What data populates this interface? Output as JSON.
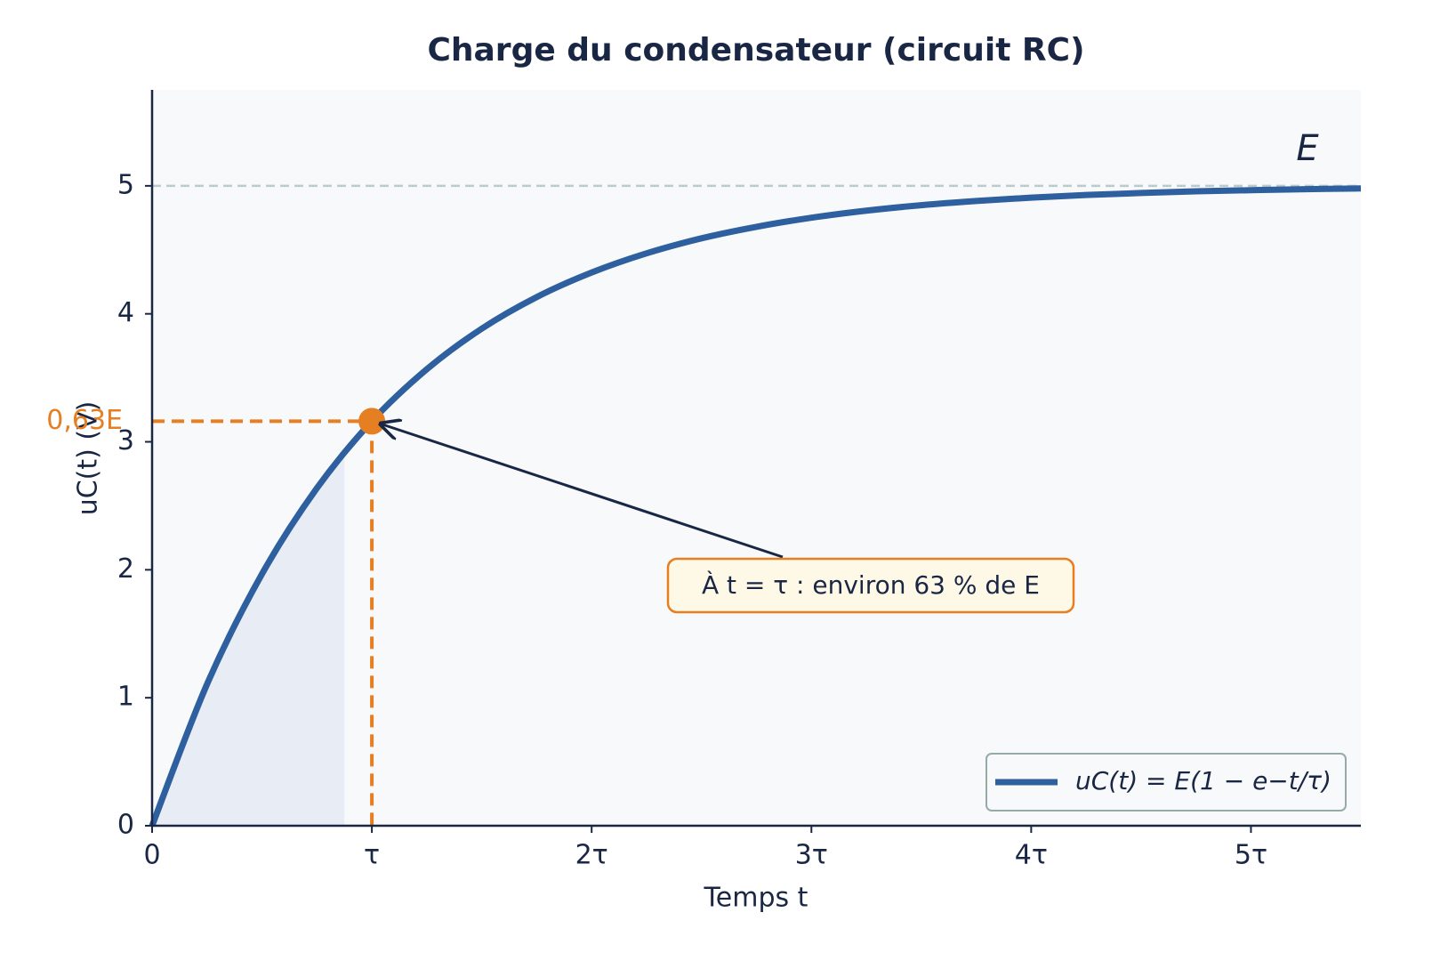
{
  "chart_data": {
    "type": "line",
    "title": "Charge du condensateur (circuit RC)",
    "x_label": "Temps t",
    "y_label": "uC(t) (V)",
    "x": [
      0,
      0.25,
      0.5,
      0.75,
      1,
      1.25,
      1.5,
      1.75,
      2,
      2.25,
      2.5,
      2.75,
      3,
      3.25,
      3.5,
      3.75,
      4,
      4.25,
      4.5,
      4.75,
      5,
      5.25,
      5.5
    ],
    "series": [
      {
        "name": "uC(t) = E(1 − e−t/τ)",
        "color": "#2e5f9e",
        "values": [
          0,
          1.106,
          1.967,
          2.638,
          3.161,
          3.567,
          3.884,
          4.131,
          4.323,
          4.473,
          4.59,
          4.68,
          4.751,
          4.806,
          4.849,
          4.882,
          4.908,
          4.929,
          4.944,
          4.957,
          4.966,
          4.974,
          4.98
        ]
      }
    ],
    "xlim": [
      0,
      5.5
    ],
    "ylim": [
      0,
      5.75
    ],
    "xticks": [
      0,
      {
        "value": 1,
        "label": "τ"
      },
      {
        "value": 2,
        "label": "2τ"
      },
      {
        "value": 3,
        "label": "3τ"
      },
      {
        "value": 4,
        "label": "4τ"
      },
      {
        "value": 5,
        "label": "5τ"
      }
    ],
    "yticks": [
      0,
      1,
      2,
      3,
      4,
      5
    ],
    "shaded_region": [
      0,
      0.875
    ],
    "asymptote": {
      "value": 5,
      "label": "E"
    },
    "highlight": {
      "x": 1,
      "y": 3.161,
      "y_label": "0,63E",
      "color": "#e67e22",
      "text": "À t = τ : environ 63 % de E"
    },
    "legend": "lower right",
    "grid": false
  }
}
